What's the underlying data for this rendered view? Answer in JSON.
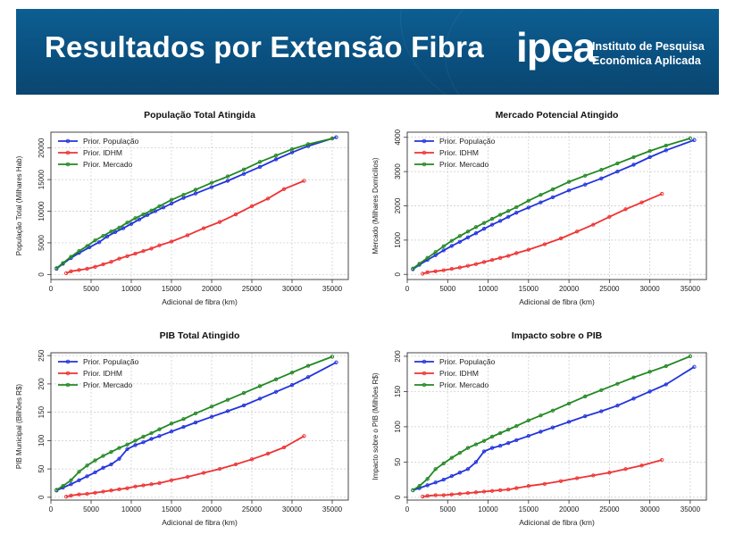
{
  "header": {
    "title": "Resultados por Extensão Fibra",
    "logo_word": "ipea",
    "logo_line1": "Instituto de Pesquisa",
    "logo_line2": "Econômica Aplicada"
  },
  "colors": {
    "banner": "#0b5687",
    "populacao": "#2233dd",
    "idhm": "#ee3333",
    "mercado": "#228822"
  },
  "chart_data": [
    {
      "type": "line",
      "title": "População Total Atingida",
      "xlabel": "Adicional de fibra (km)",
      "ylabel": "População Total (Milhares Hab)",
      "xlim": [
        0,
        37000
      ],
      "ylim": [
        -800,
        22500
      ],
      "xticks": [
        0,
        5000,
        10000,
        15000,
        20000,
        25000,
        30000,
        35000
      ],
      "yticks": [
        0,
        5000,
        10000,
        15000,
        20000
      ],
      "legend_position": "top-left",
      "grid": true,
      "series": [
        {
          "name": "Prior. População",
          "color": "#2233dd",
          "x": [
            700,
            1500,
            2500,
            3500,
            4800,
            6000,
            7000,
            8000,
            9000,
            10000,
            11000,
            12000,
            13000,
            14000,
            15000,
            16500,
            18000,
            20000,
            22000,
            24000,
            26000,
            28000,
            30000,
            32000,
            35500
          ],
          "y": [
            900,
            1700,
            2600,
            3400,
            4300,
            5100,
            6000,
            6700,
            7300,
            8000,
            8700,
            9400,
            10000,
            10600,
            11200,
            12100,
            12800,
            13800,
            14800,
            15900,
            17000,
            18200,
            19300,
            20300,
            21700
          ]
        },
        {
          "name": "Prior. IDHM",
          "color": "#ee3333",
          "x": [
            1900,
            2500,
            3500,
            4500,
            5500,
            6500,
            7500,
            8500,
            9500,
            10500,
            11500,
            12500,
            13500,
            15000,
            17000,
            19000,
            21000,
            23000,
            25000,
            27000,
            29000,
            31500
          ],
          "y": [
            200,
            500,
            700,
            900,
            1200,
            1600,
            2000,
            2500,
            2900,
            3300,
            3700,
            4100,
            4600,
            5200,
            6200,
            7300,
            8300,
            9500,
            10800,
            12000,
            13500,
            14800
          ]
        },
        {
          "name": "Prior. Mercado",
          "color": "#228822",
          "x": [
            700,
            1500,
            2500,
            3500,
            4500,
            5500,
            6500,
            7500,
            8500,
            9500,
            10500,
            11500,
            12500,
            13500,
            15000,
            16500,
            18000,
            20000,
            22000,
            24000,
            26000,
            28000,
            30000,
            32000,
            35000
          ],
          "y": [
            1000,
            1800,
            2800,
            3700,
            4500,
            5400,
            6100,
            6800,
            7400,
            8200,
            8900,
            9500,
            10100,
            10800,
            11800,
            12600,
            13400,
            14500,
            15500,
            16600,
            17800,
            18800,
            19800,
            20600,
            21500
          ]
        }
      ]
    },
    {
      "type": "line",
      "title": "Mercado Potencial Atingido",
      "xlabel": "Adicional de fibra (km)",
      "ylabel": "Mercado (Milhares Domicílios)",
      "xlim": [
        0,
        37000
      ],
      "ylim": [
        -150,
        4150
      ],
      "xticks": [
        0,
        5000,
        10000,
        15000,
        20000,
        25000,
        30000,
        35000
      ],
      "yticks": [
        0,
        1000,
        2000,
        3000,
        4000
      ],
      "legend_position": "top-left",
      "grid": true,
      "series": [
        {
          "name": "Prior. População",
          "color": "#2233dd",
          "x": [
            700,
            1500,
            2500,
            3500,
            4500,
            5500,
            6500,
            7500,
            8500,
            9500,
            10500,
            11500,
            12500,
            13500,
            15000,
            16500,
            18000,
            20000,
            22000,
            24000,
            26000,
            28000,
            30000,
            32000,
            35500
          ],
          "y": [
            150,
            280,
            420,
            560,
            700,
            830,
            950,
            1080,
            1200,
            1330,
            1450,
            1560,
            1680,
            1800,
            1950,
            2100,
            2250,
            2450,
            2620,
            2800,
            3000,
            3200,
            3420,
            3620,
            3920
          ]
        },
        {
          "name": "Prior. IDHM",
          "color": "#ee3333",
          "x": [
            1900,
            2500,
            3500,
            4500,
            5500,
            6500,
            7500,
            8500,
            9500,
            10500,
            11500,
            12500,
            13500,
            15000,
            17000,
            19000,
            21000,
            23000,
            25000,
            27000,
            29000,
            31500
          ],
          "y": [
            20,
            60,
            90,
            120,
            160,
            200,
            250,
            300,
            360,
            420,
            480,
            540,
            620,
            720,
            880,
            1050,
            1250,
            1450,
            1680,
            1900,
            2100,
            2350
          ]
        },
        {
          "name": "Prior. Mercado",
          "color": "#228822",
          "x": [
            700,
            1500,
            2500,
            3500,
            4500,
            5500,
            6500,
            7500,
            8500,
            9500,
            10500,
            11500,
            12500,
            13500,
            15000,
            16500,
            18000,
            20000,
            22000,
            24000,
            26000,
            28000,
            30000,
            32000,
            35000
          ],
          "y": [
            170,
            310,
            480,
            650,
            820,
            980,
            1120,
            1250,
            1380,
            1500,
            1620,
            1740,
            1850,
            1960,
            2150,
            2320,
            2480,
            2700,
            2880,
            3050,
            3240,
            3420,
            3600,
            3760,
            3970
          ]
        }
      ]
    },
    {
      "type": "line",
      "title": "PIB Total Atingido",
      "xlabel": "Adicional de fibra (km)",
      "ylabel": "PIB Municipal (Bilhões R$)",
      "xlim": [
        0,
        37000
      ],
      "ylim": [
        -5,
        255
      ],
      "xticks": [
        0,
        5000,
        10000,
        15000,
        20000,
        25000,
        30000,
        35000
      ],
      "yticks": [
        0,
        50,
        100,
        150,
        200,
        250
      ],
      "legend_position": "top-left",
      "grid": true,
      "series": [
        {
          "name": "Prior. População",
          "color": "#2233dd",
          "x": [
            700,
            1500,
            2500,
            3500,
            4500,
            5500,
            6500,
            7500,
            8500,
            9500,
            10500,
            11500,
            12500,
            13500,
            15000,
            16500,
            18000,
            20000,
            22000,
            24000,
            26000,
            28000,
            30000,
            32000,
            35500
          ],
          "y": [
            12,
            17,
            23,
            30,
            37,
            44,
            52,
            58,
            68,
            85,
            92,
            97,
            103,
            108,
            116,
            124,
            132,
            142,
            152,
            162,
            174,
            186,
            198,
            212,
            238
          ]
        },
        {
          "name": "Prior. IDHM",
          "color": "#ee3333",
          "x": [
            1900,
            2500,
            3500,
            4500,
            5500,
            6500,
            7500,
            8500,
            9500,
            10500,
            11500,
            12500,
            13500,
            15000,
            17000,
            19000,
            21000,
            23000,
            25000,
            27000,
            29000,
            31500
          ],
          "y": [
            1,
            3,
            5,
            6,
            8,
            10,
            12,
            14,
            16,
            19,
            21,
            23,
            25,
            30,
            36,
            43,
            50,
            58,
            67,
            77,
            88,
            108
          ]
        },
        {
          "name": "Prior. Mercado",
          "color": "#228822",
          "x": [
            700,
            1500,
            2500,
            3500,
            4500,
            5500,
            6500,
            7500,
            8500,
            9500,
            10500,
            11500,
            12500,
            13500,
            15000,
            16500,
            18000,
            20000,
            22000,
            24000,
            26000,
            28000,
            30000,
            32000,
            35000
          ],
          "y": [
            13,
            20,
            30,
            45,
            56,
            65,
            73,
            80,
            87,
            93,
            100,
            107,
            113,
            120,
            130,
            138,
            148,
            160,
            172,
            184,
            196,
            208,
            220,
            232,
            248
          ]
        }
      ]
    },
    {
      "type": "line",
      "title": "Impacto sobre o PIB",
      "xlabel": "Adicional de fibra (km)",
      "ylabel": "Impacto sobre o PIB (Milhões R$)",
      "xlim": [
        0,
        37000
      ],
      "ylim": [
        -4,
        205
      ],
      "xticks": [
        0,
        5000,
        10000,
        15000,
        20000,
        25000,
        30000,
        35000
      ],
      "yticks": [
        0,
        50,
        100,
        150,
        200
      ],
      "legend_position": "top-left",
      "grid": true,
      "series": [
        {
          "name": "Prior. População",
          "color": "#2233dd",
          "x": [
            700,
            1500,
            2500,
            3500,
            4500,
            5500,
            6500,
            7500,
            8500,
            9500,
            10500,
            11500,
            12500,
            13500,
            15000,
            16500,
            18000,
            20000,
            22000,
            24000,
            26000,
            28000,
            30000,
            32000,
            35500
          ],
          "y": [
            10,
            13,
            17,
            21,
            25,
            30,
            35,
            40,
            50,
            65,
            70,
            73,
            77,
            81,
            87,
            93,
            99,
            107,
            115,
            122,
            130,
            140,
            150,
            160,
            185
          ]
        },
        {
          "name": "Prior. IDHM",
          "color": "#ee3333",
          "x": [
            1900,
            2500,
            3500,
            4500,
            5500,
            6500,
            7500,
            8500,
            9500,
            10500,
            11500,
            12500,
            13500,
            15000,
            17000,
            19000,
            21000,
            23000,
            25000,
            27000,
            29000,
            31500
          ],
          "y": [
            1,
            2,
            3,
            3,
            4,
            5,
            6,
            7,
            8,
            9,
            10,
            11,
            13,
            16,
            19,
            23,
            27,
            31,
            35,
            40,
            45,
            53
          ]
        },
        {
          "name": "Prior. Mercado",
          "color": "#228822",
          "x": [
            700,
            1500,
            2500,
            3500,
            4500,
            5500,
            6500,
            7500,
            8500,
            9500,
            10500,
            11500,
            12500,
            13500,
            15000,
            16500,
            18000,
            20000,
            22000,
            24000,
            26000,
            28000,
            30000,
            32000,
            35000
          ],
          "y": [
            10,
            16,
            26,
            40,
            48,
            56,
            63,
            70,
            75,
            80,
            86,
            91,
            96,
            101,
            109,
            116,
            123,
            133,
            143,
            152,
            161,
            170,
            178,
            186,
            200
          ]
        }
      ]
    }
  ]
}
